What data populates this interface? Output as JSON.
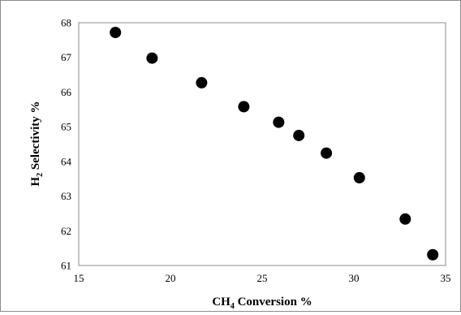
{
  "chart_data": {
    "type": "scatter",
    "title": "",
    "xlabel": {
      "prefix": "CH",
      "subscript": "4",
      "suffix": " Conversion %"
    },
    "ylabel": {
      "prefix": "H",
      "subscript": "2",
      "suffix": " Selectivity %"
    },
    "xlim": [
      15,
      35
    ],
    "ylim": [
      61,
      68
    ],
    "x_ticks": [
      15,
      20,
      25,
      30,
      35
    ],
    "y_ticks": [
      61,
      62,
      63,
      64,
      65,
      66,
      67,
      68
    ],
    "grid": false,
    "legend": "none",
    "marker_color": "#000000",
    "series": [
      {
        "x": [
          17.0,
          19.0,
          21.7,
          24.0,
          25.9,
          27.0,
          28.5,
          30.3,
          32.8,
          34.3
        ],
        "y": [
          67.72,
          66.98,
          66.27,
          65.58,
          65.13,
          64.75,
          64.24,
          63.53,
          62.34,
          61.31
        ]
      }
    ]
  }
}
